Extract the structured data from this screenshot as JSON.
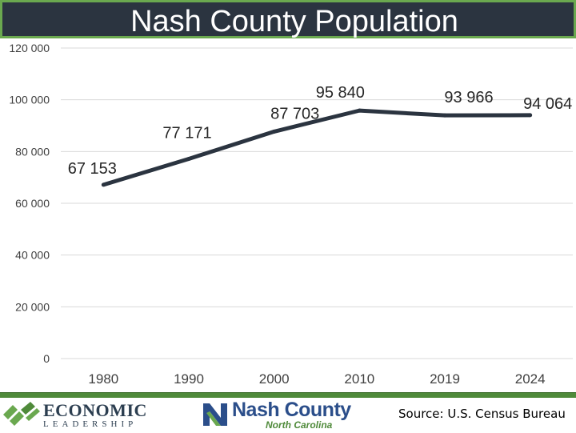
{
  "header": {
    "title": "Nash County Population"
  },
  "chart_data": {
    "type": "line",
    "title": "Nash County Population",
    "xlabel": "",
    "ylabel": "",
    "categories": [
      "1980",
      "1990",
      "2000",
      "2010",
      "2019",
      "2024"
    ],
    "series": [
      {
        "name": "Population",
        "values": [
          67153,
          77171,
          87703,
          95840,
          93966,
          94064
        ],
        "color": "#2b3440"
      }
    ],
    "data_labels": [
      "67 153",
      "77 171",
      "87 703",
      "95 840",
      "93 966",
      "94 064"
    ],
    "y_ticks": [
      0,
      20000,
      40000,
      60000,
      80000,
      100000,
      120000
    ],
    "y_tick_labels": [
      "0",
      "20 000",
      "40 000",
      "60 000",
      "80 000",
      "100 000",
      "120 000"
    ],
    "ylim": [
      0,
      120000
    ],
    "grid": true,
    "legend": "none"
  },
  "footer": {
    "source": "Source: U.S. Census Bureau",
    "logo_left": {
      "main": "ECONOMIC",
      "sub": "LEADERSHIP"
    },
    "logo_right": {
      "main": "Nash County",
      "sub": "North Carolina"
    }
  },
  "colors": {
    "title_bg": "#2b3440",
    "accent_green": "#6aa84f",
    "line": "#2b3440",
    "grid": "#d9d9d9",
    "logo_blue": "#2b4e8a"
  }
}
